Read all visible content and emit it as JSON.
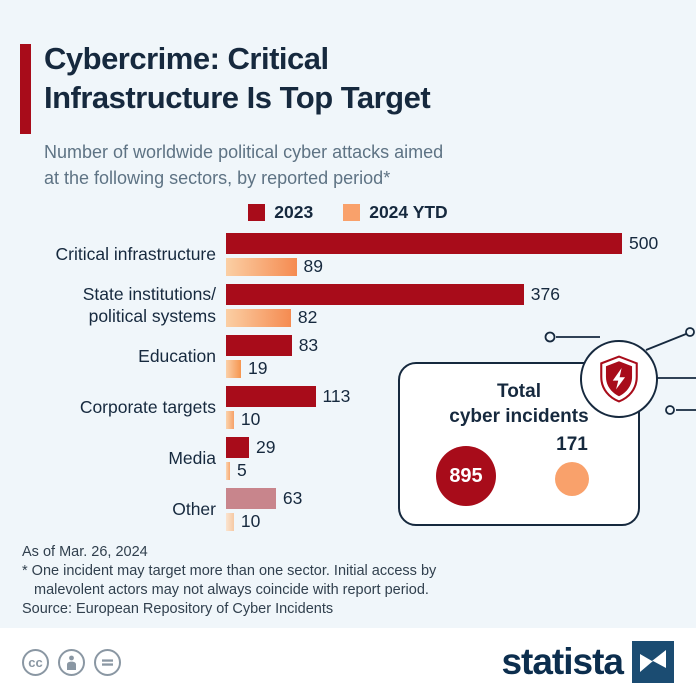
{
  "colors": {
    "background": "#F0F6FA",
    "accent_red": "#A80C1A",
    "navy": "#16293E",
    "subtitle_gray": "#5E7384",
    "orange": "#F9A16B",
    "muted_red": "#C8858C"
  },
  "header": {
    "title": "Cybercrime: Critical\nInfrastructure Is Top Target",
    "subtitle": "Number of worldwide political cyber attacks aimed\nat the following sectors, by reported period*"
  },
  "legend": {
    "items": [
      {
        "label": "2023",
        "color": "#A80C1A"
      },
      {
        "label": "2024 YTD",
        "color": "#F9A16B"
      }
    ]
  },
  "chart_data": {
    "type": "bar",
    "orientation": "horizontal",
    "title": "Number of worldwide political cyber attacks aimed at the following sectors, by reported period",
    "legend_position": "top",
    "xlim": [
      0,
      500
    ],
    "grid": false,
    "categories": [
      "Critical infrastructure",
      "State institutions/\npolitical systems",
      "Education",
      "Corporate targets",
      "Media",
      "Other"
    ],
    "series": [
      {
        "name": "2023",
        "values": [
          500,
          376,
          83,
          113,
          29,
          63
        ],
        "bar_colors": [
          "#A80C1A",
          "#A80C1A",
          "#A80C1A",
          "#A80C1A",
          "#A80C1A",
          "#C8858C"
        ]
      },
      {
        "name": "2024 YTD",
        "values": [
          89,
          82,
          19,
          10,
          5,
          10
        ],
        "bar_colors": [
          [
            "#FBCFA4",
            "#F58B51"
          ],
          [
            "#FBCFA4",
            "#F58B51"
          ],
          [
            "#FBD0A8",
            "#F6954F"
          ],
          [
            "#FBD3AC",
            "#F6A269"
          ],
          [
            "#FBD6B2",
            "#F7A871"
          ],
          [
            "#FAE4D0",
            "#F6C9A4"
          ]
        ]
      }
    ]
  },
  "callout": {
    "title": "Total\ncyber incidents",
    "value_2023": "895",
    "value_2024": "171"
  },
  "footer": {
    "as_of": "As of Mar. 26, 2024",
    "note_line1": "* One incident may target more than one sector. Initial access by",
    "note_line2": "malevolent actors may not always coincide with report period.",
    "source": "Source: European Repository of Cyber Incidents"
  },
  "branding": {
    "logo_text": "statista",
    "cc_badge": "cc"
  }
}
